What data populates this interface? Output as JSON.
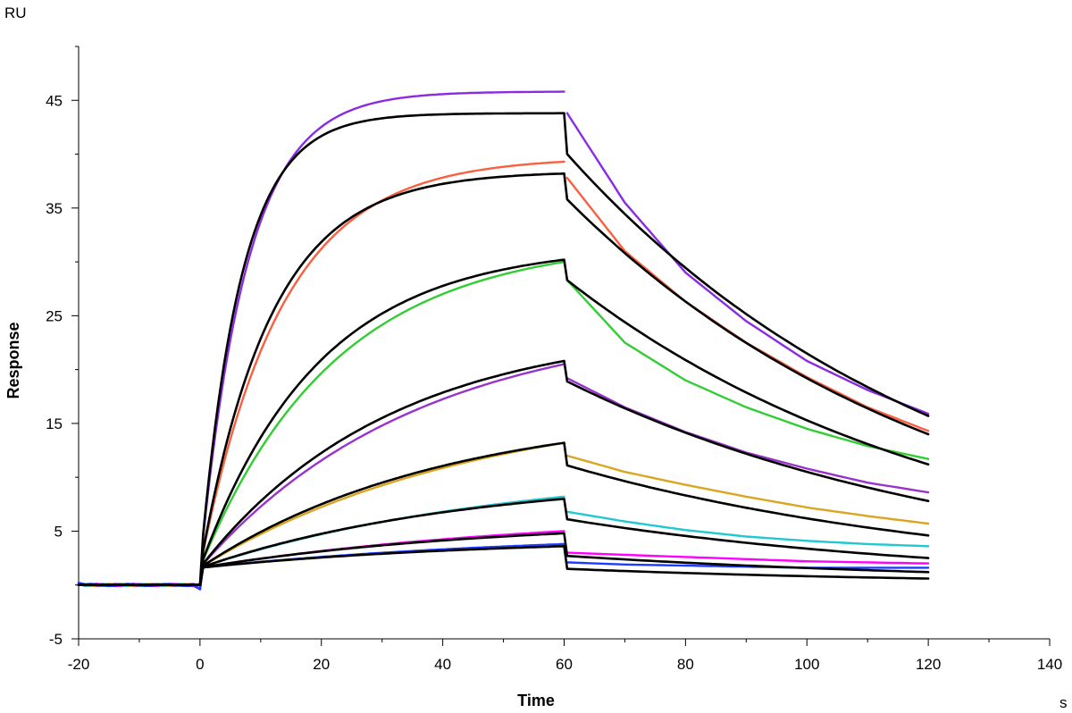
{
  "chart_data": {
    "type": "line",
    "title": "",
    "xlabel": "Time",
    "ylabel": "Response",
    "x_unit": "s",
    "y_unit": "RU",
    "xlim": [
      -20,
      140
    ],
    "ylim": [
      -5,
      50
    ],
    "x_ticks": [
      -20,
      0,
      20,
      40,
      60,
      80,
      100,
      120,
      140
    ],
    "y_ticks": [
      -5,
      5,
      15,
      25,
      35,
      45
    ],
    "grid": false,
    "legend": "none",
    "injection_start": 0,
    "injection_end": 60,
    "run_end": 120,
    "series": [
      {
        "color": "#8a2be2",
        "values_at": {
          "-20": 0,
          "0": 0,
          "60": 45.8,
          "60.5": 43.8,
          "70": 35.5,
          "80": 29.0,
          "90": 24.5,
          "100": 20.8,
          "110": 18.1,
          "120": 15.9
        }
      },
      {
        "color": "#fa6040",
        "values_at": {
          "-20": 0,
          "0": 0,
          "60": 39.3,
          "60.5": 37.8,
          "70": 31.0,
          "80": 26.3,
          "90": 22.5,
          "100": 19.3,
          "110": 16.5,
          "120": 14.3
        }
      },
      {
        "color": "#32cd32",
        "values_at": {
          "-20": 0,
          "0": 0,
          "60": 30.0,
          "60.5": 28.3,
          "70": 22.5,
          "80": 19.0,
          "90": 16.5,
          "100": 14.5,
          "110": 12.9,
          "120": 11.7
        }
      },
      {
        "color": "#9932cc",
        "values_at": {
          "-20": 0,
          "0": 0,
          "60": 20.5,
          "60.5": 19.2,
          "70": 16.5,
          "80": 14.2,
          "90": 12.3,
          "100": 10.8,
          "110": 9.5,
          "120": 8.6
        }
      },
      {
        "color": "#daa520",
        "values_at": {
          "-20": 0,
          "0": 0,
          "60": 13.2,
          "60.5": 12.0,
          "70": 10.5,
          "80": 9.3,
          "90": 8.2,
          "100": 7.2,
          "110": 6.4,
          "120": 5.7
        }
      },
      {
        "color": "#20c8d0",
        "values_at": {
          "-20": 0,
          "0": 0,
          "60": 8.2,
          "60.5": 6.8,
          "70": 5.9,
          "80": 5.1,
          "90": 4.5,
          "100": 4.1,
          "110": 3.8,
          "120": 3.6
        }
      },
      {
        "color": "#ff00ff",
        "values_at": {
          "-20": 0,
          "0": 0,
          "60": 5.0,
          "60.5": 3.0,
          "70": 2.8,
          "80": 2.6,
          "90": 2.4,
          "100": 2.2,
          "110": 2.1,
          "120": 2.0
        }
      },
      {
        "color": "#1e3cff",
        "values_at": {
          "-20": 0,
          "0": 0,
          "60": 3.8,
          "60.5": 2.1,
          "70": 1.9,
          "80": 1.8,
          "90": 1.7,
          "100": 1.6,
          "110": 1.6,
          "120": 1.6
        }
      }
    ],
    "fits": [
      {
        "color": "#000000",
        "values_at": {
          "60": 43.8,
          "60.5": 40.0,
          "120": 15.7
        }
      },
      {
        "color": "#000000",
        "values_at": {
          "60": 38.2,
          "60.5": 35.8,
          "120": 14.0
        }
      },
      {
        "color": "#000000",
        "values_at": {
          "60": 30.2,
          "60.5": 28.3,
          "120": 11.2
        }
      },
      {
        "color": "#000000",
        "values_at": {
          "60": 20.8,
          "60.5": 18.9,
          "120": 7.8
        }
      },
      {
        "color": "#000000",
        "values_at": {
          "60": 13.2,
          "60.5": 11.1,
          "120": 4.6
        }
      },
      {
        "color": "#000000",
        "values_at": {
          "60": 8.0,
          "60.5": 6.1,
          "120": 2.5
        }
      },
      {
        "color": "#000000",
        "values_at": {
          "60": 4.8,
          "60.5": 2.7,
          "120": 1.2
        }
      },
      {
        "color": "#000000",
        "values_at": {
          "60": 3.6,
          "60.5": 1.5,
          "120": 0.6
        }
      }
    ]
  }
}
